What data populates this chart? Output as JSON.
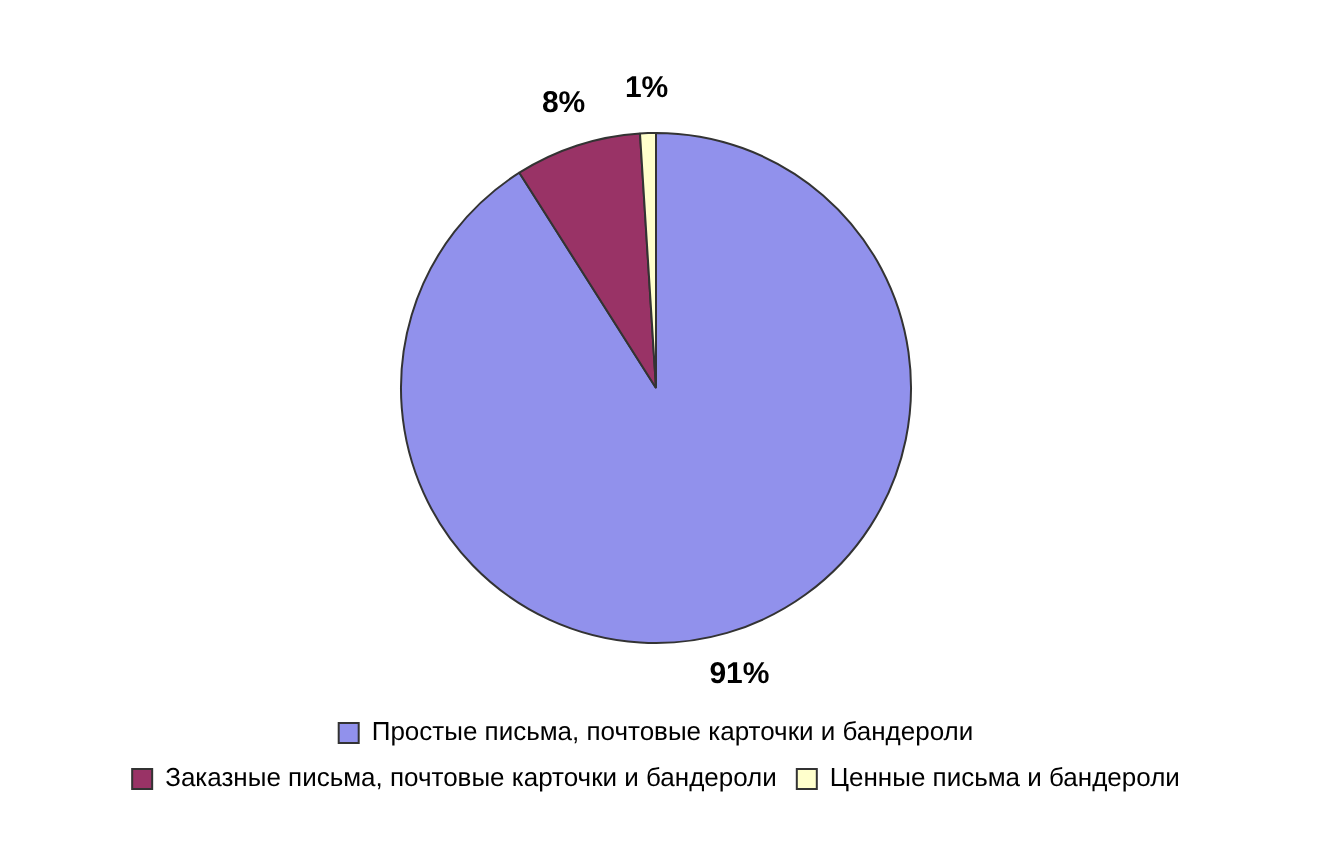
{
  "chart_data": {
    "type": "pie",
    "categories": [
      "Простые письма, почтовые карточки и бандероли",
      "Заказные письма, почтовые карточки и бандероли",
      "Ценные письма и бандероли"
    ],
    "values": [
      91,
      8,
      1
    ],
    "colors": [
      "#9191ec",
      "#993366",
      "#ffffcc"
    ],
    "value_labels": [
      "91%",
      "8%",
      "1%"
    ],
    "legend": "bottom"
  }
}
